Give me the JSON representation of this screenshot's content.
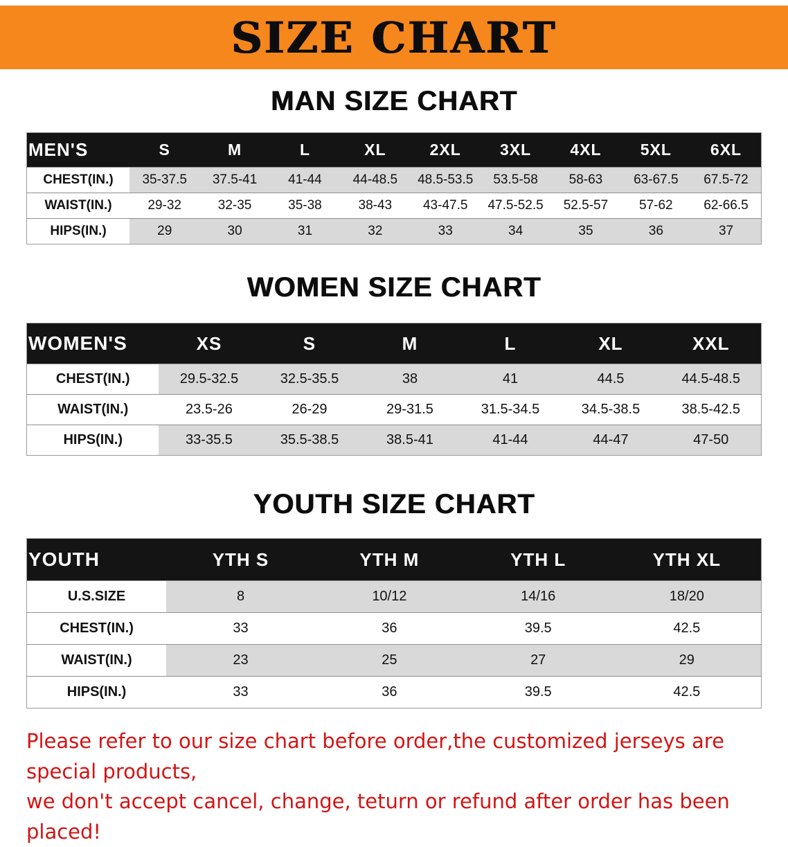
{
  "banner": {
    "title": "SIZE CHART"
  },
  "colors": {
    "banner_bg": "#f6871d",
    "table_header_bg": "#141414",
    "row_stripe": "#d9d9d9",
    "disclaimer_text": "#d41414"
  },
  "sections": [
    {
      "kind": "men",
      "heading": "MAN SIZE CHART",
      "table": {
        "title": "MEN'S",
        "columns": [
          "S",
          "M",
          "L",
          "XL",
          "2XL",
          "3XL",
          "4XL",
          "5XL",
          "6XL"
        ],
        "rows": [
          {
            "label": "CHEST(IN.)",
            "values": [
              "35-37.5",
              "37.5-41",
              "41-44",
              "44-48.5",
              "48.5-53.5",
              "53.5-58",
              "58-63",
              "63-67.5",
              "67.5-72"
            ]
          },
          {
            "label": "WAIST(IN.)",
            "values": [
              "29-32",
              "32-35",
              "35-38",
              "38-43",
              "43-47.5",
              "47.5-52.5",
              "52.5-57",
              "57-62",
              "62-66.5"
            ]
          },
          {
            "label": "HIPS(IN.)",
            "values": [
              "29",
              "30",
              "31",
              "32",
              "33",
              "34",
              "35",
              "36",
              "37"
            ]
          }
        ]
      }
    },
    {
      "kind": "women",
      "heading": "WOMEN SIZE CHART",
      "table": {
        "title": "WOMEN'S",
        "columns": [
          "XS",
          "S",
          "M",
          "L",
          "XL",
          "XXL"
        ],
        "rows": [
          {
            "label": "CHEST(IN.)",
            "values": [
              "29.5-32.5",
              "32.5-35.5",
              "38",
              "41",
              "44.5",
              "44.5-48.5"
            ]
          },
          {
            "label": "WAIST(IN.)",
            "values": [
              "23.5-26",
              "26-29",
              "29-31.5",
              "31.5-34.5",
              "34.5-38.5",
              "38.5-42.5"
            ]
          },
          {
            "label": "HIPS(IN.)",
            "values": [
              "33-35.5",
              "35.5-38.5",
              "38.5-41",
              "41-44",
              "44-47",
              "47-50"
            ]
          }
        ]
      }
    },
    {
      "kind": "youth",
      "heading": "YOUTH SIZE CHART",
      "table": {
        "title": "YOUTH",
        "columns": [
          "YTH S",
          "YTH M",
          "YTH L",
          "YTH XL"
        ],
        "rows": [
          {
            "label": "U.S.SIZE",
            "values": [
              "8",
              "10/12",
              "14/16",
              "18/20"
            ]
          },
          {
            "label": "CHEST(IN.)",
            "values": [
              "33",
              "36",
              "39.5",
              "42.5"
            ]
          },
          {
            "label": "WAIST(IN.)",
            "values": [
              "23",
              "25",
              "27",
              "29"
            ]
          },
          {
            "label": "HIPS(IN.)",
            "values": [
              "33",
              "36",
              "39.5",
              "42.5"
            ]
          }
        ]
      }
    }
  ],
  "footer": {
    "lines": [
      "Please refer to our size chart before order,the customized jerseys are special products,",
      "we don't accept cancel, change, teturn or refund after order has been placed!"
    ]
  }
}
